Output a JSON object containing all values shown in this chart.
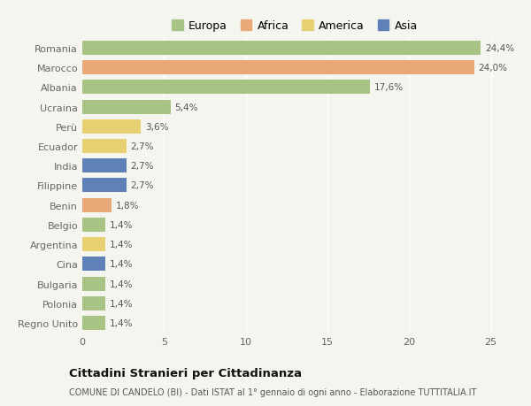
{
  "countries": [
    "Romania",
    "Marocco",
    "Albania",
    "Ucraina",
    "Perù",
    "Ecuador",
    "India",
    "Filippine",
    "Benin",
    "Belgio",
    "Argentina",
    "Cina",
    "Bulgaria",
    "Polonia",
    "Regno Unito"
  ],
  "values": [
    24.4,
    24.0,
    17.6,
    5.4,
    3.6,
    2.7,
    2.7,
    2.7,
    1.8,
    1.4,
    1.4,
    1.4,
    1.4,
    1.4,
    1.4
  ],
  "labels": [
    "24,4%",
    "24,0%",
    "17,6%",
    "5,4%",
    "3,6%",
    "2,7%",
    "2,7%",
    "2,7%",
    "1,8%",
    "1,4%",
    "1,4%",
    "1,4%",
    "1,4%",
    "1,4%",
    "1,4%"
  ],
  "continents": [
    "Europa",
    "Africa",
    "Europa",
    "Europa",
    "America",
    "America",
    "Asia",
    "Asia",
    "Africa",
    "Europa",
    "America",
    "Asia",
    "Europa",
    "Europa",
    "Europa"
  ],
  "continent_colors": {
    "Europa": "#a8c484",
    "Africa": "#e8a878",
    "America": "#e8d070",
    "Asia": "#6080b8"
  },
  "legend_order": [
    "Europa",
    "Africa",
    "America",
    "Asia"
  ],
  "title": "Cittadini Stranieri per Cittadinanza",
  "subtitle": "COMUNE DI CANDELO (BI) - Dati ISTAT al 1° gennaio di ogni anno - Elaborazione TUTTITALIA.IT",
  "xlim": [
    0,
    26
  ],
  "xticks": [
    0,
    5,
    10,
    15,
    20,
    25
  ],
  "bg_color": "#f5f5f0",
  "grid_color": "#ffffff",
  "bar_height": 0.72
}
